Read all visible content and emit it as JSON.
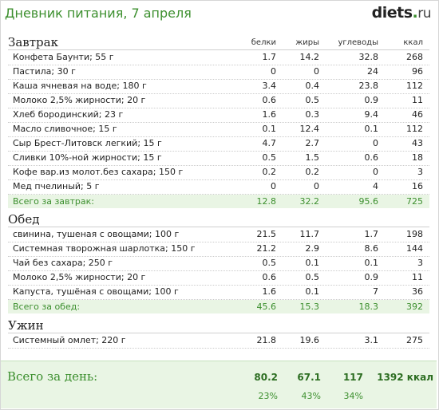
{
  "header": {
    "title": "Дневник питания, 7 апреля",
    "logo_main": "diets",
    "logo_dot": ".",
    "logo_tld": "ru"
  },
  "columns": {
    "protein": "белки",
    "fat": "жиры",
    "carbs": "углеводы",
    "kcal": "ккал"
  },
  "meals": [
    {
      "name": "Завтрак",
      "items": [
        {
          "name": "Конфета Баунти; 55 г",
          "protein": "1.7",
          "fat": "14.2",
          "carbs": "32.8",
          "kcal": "268"
        },
        {
          "name": "Пастила; 30 г",
          "protein": "0",
          "fat": "0",
          "carbs": "24",
          "kcal": "96"
        },
        {
          "name": "Каша ячневая на воде; 180 г",
          "protein": "3.4",
          "fat": "0.4",
          "carbs": "23.8",
          "kcal": "112"
        },
        {
          "name": "Молоко 2,5% жирности; 20 г",
          "protein": "0.6",
          "fat": "0.5",
          "carbs": "0.9",
          "kcal": "11"
        },
        {
          "name": "Хлеб бородинский; 23 г",
          "protein": "1.6",
          "fat": "0.3",
          "carbs": "9.4",
          "kcal": "46"
        },
        {
          "name": "Масло сливочное; 15 г",
          "protein": "0.1",
          "fat": "12.4",
          "carbs": "0.1",
          "kcal": "112"
        },
        {
          "name": "Сыр Брест-Литовск легкий; 15 г",
          "protein": "4.7",
          "fat": "2.7",
          "carbs": "0",
          "kcal": "43"
        },
        {
          "name": "Сливки 10%-ной жирности; 15 г",
          "protein": "0.5",
          "fat": "1.5",
          "carbs": "0.6",
          "kcal": "18"
        },
        {
          "name": "Кофе вар.из молот.без сахара; 150 г",
          "protein": "0.2",
          "fat": "0.2",
          "carbs": "0",
          "kcal": "3"
        },
        {
          "name": "Мед пчелиный; 5 г",
          "protein": "0",
          "fat": "0",
          "carbs": "4",
          "kcal": "16"
        }
      ],
      "total": {
        "label": "Всего за завтрак:",
        "protein": "12.8",
        "fat": "32.2",
        "carbs": "95.6",
        "kcal": "725"
      }
    },
    {
      "name": "Обед",
      "items": [
        {
          "name": "свинина, тушеная с овощами; 100 г",
          "protein": "21.5",
          "fat": "11.7",
          "carbs": "1.7",
          "kcal": "198"
        },
        {
          "name": "Системная творожная шарлотка; 150 г",
          "protein": "21.2",
          "fat": "2.9",
          "carbs": "8.6",
          "kcal": "144"
        },
        {
          "name": "Чай без сахара; 250 г",
          "protein": "0.5",
          "fat": "0.1",
          "carbs": "0.1",
          "kcal": "3"
        },
        {
          "name": "Молоко 2,5% жирности; 20 г",
          "protein": "0.6",
          "fat": "0.5",
          "carbs": "0.9",
          "kcal": "11"
        },
        {
          "name": "Капуста, тушёная с овощами; 100 г",
          "protein": "1.6",
          "fat": "0.1",
          "carbs": "7",
          "kcal": "36"
        }
      ],
      "total": {
        "label": "Всего за обед:",
        "protein": "45.6",
        "fat": "15.3",
        "carbs": "18.3",
        "kcal": "392"
      }
    },
    {
      "name": "Ужин",
      "items": [
        {
          "name": "Системный омлет; 220 г",
          "protein": "21.8",
          "fat": "19.6",
          "carbs": "3.1",
          "kcal": "275"
        }
      ]
    }
  ],
  "day_total": {
    "label": "Всего за день:",
    "protein": "80.2",
    "fat": "67.1",
    "carbs": "117",
    "kcal": "1392 ккал",
    "protein_pct": "23%",
    "fat_pct": "43%",
    "carbs_pct": "34%"
  },
  "colors": {
    "accent": "#3c8f2e",
    "total_bg": "#e9f5e4"
  }
}
